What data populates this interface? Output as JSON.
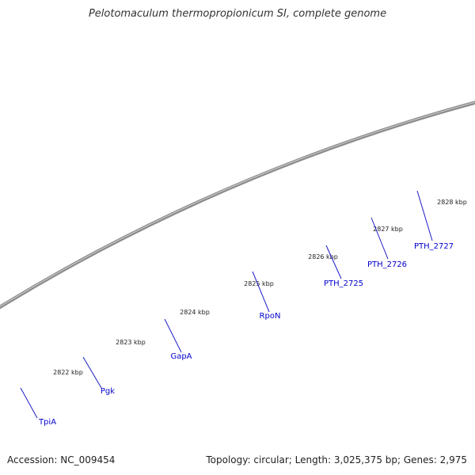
{
  "title": "Pelotomaculum thermopropionicum SI, complete genome",
  "footer": {
    "accession": "Accession: NC_009454",
    "topology": "Topology: circular; Length: 3,025,375 bp; Genes: 2,975"
  },
  "colors": {
    "backbone": "#8c8c8c",
    "forward_gene": "#1010e8",
    "feature_cyan": "#1ac8c8",
    "feature_orange": "#f88a10",
    "feature_dark_gray": "#606060",
    "feature_light_gray": "#c4c4c4",
    "ticks": "#1a8c1a",
    "gene_label": "#0000cc"
  },
  "kbp_labels": [
    "2822 kbp",
    "2823 kbp",
    "2824 kbp",
    "2825 kbp",
    "2826 kbp",
    "2827 kbp",
    "2828 kbp"
  ],
  "gene_labels": [
    "TpiA",
    "Pgk",
    "GapA",
    "RpoN",
    "PTH_2725",
    "PTH_2726",
    "PTH_2727"
  ]
}
